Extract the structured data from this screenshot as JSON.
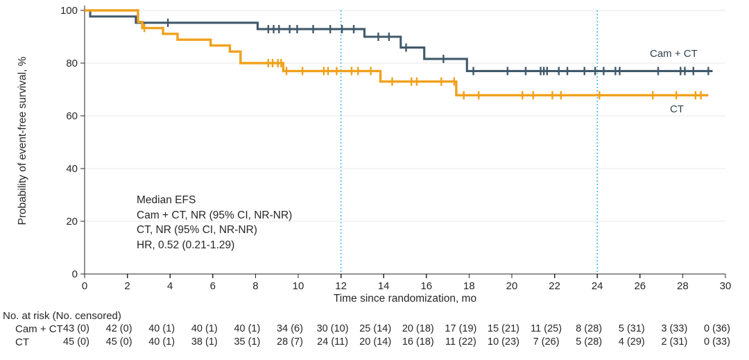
{
  "figure": {
    "ylabel": "Probability of event-free survival, %",
    "xlabel": "Time since randomization, mo"
  },
  "chart_data": {
    "type": "line",
    "subtype": "kaplan-meier-step",
    "xlabel": "Time since randomization, mo",
    "ylabel": "Probability of event-free survival, %",
    "xlim": [
      0,
      30
    ],
    "ylim": [
      0,
      100
    ],
    "x_ticks": [
      0,
      2,
      4,
      6,
      8,
      10,
      12,
      14,
      16,
      18,
      20,
      22,
      24,
      26,
      28,
      30
    ],
    "y_ticks": [
      0,
      20,
      40,
      60,
      80,
      100
    ],
    "grid": "horizontal",
    "reference_lines_x": [
      12,
      24
    ],
    "annotation": [
      "Median EFS",
      "Cam + CT, NR (95% CI, NR-NR)",
      "CT, NR (95% CI, NR-NR)",
      "HR, 0.52 (0.21-1.29)"
    ],
    "series": [
      {
        "name": "Cam + CT",
        "color": "#41596a",
        "end_x": 29.4,
        "steps": [
          [
            0,
            100
          ],
          [
            0.26,
            97.7
          ],
          [
            2.4,
            95.3
          ],
          [
            8.1,
            92.9
          ],
          [
            13.1,
            90.0
          ],
          [
            14.8,
            85.9
          ],
          [
            15.9,
            81.6
          ],
          [
            17.9,
            77.0
          ]
        ],
        "censors": [
          [
            3.9,
            95.3
          ],
          [
            8.6,
            92.9
          ],
          [
            8.85,
            92.9
          ],
          [
            9.1,
            92.9
          ],
          [
            9.6,
            92.9
          ],
          [
            9.95,
            92.9
          ],
          [
            10.7,
            92.9
          ],
          [
            11.5,
            92.9
          ],
          [
            12.05,
            92.9
          ],
          [
            12.6,
            92.9
          ],
          [
            13.75,
            90.0
          ],
          [
            14.25,
            90.0
          ],
          [
            15.05,
            85.9
          ],
          [
            16.8,
            81.6
          ],
          [
            18.2,
            77.0
          ],
          [
            19.8,
            77.0
          ],
          [
            20.65,
            77.0
          ],
          [
            21.35,
            77.0
          ],
          [
            21.5,
            77.0
          ],
          [
            21.65,
            77.0
          ],
          [
            22.2,
            77.0
          ],
          [
            22.6,
            77.0
          ],
          [
            23.4,
            77.0
          ],
          [
            23.9,
            77.0
          ],
          [
            24.3,
            77.0
          ],
          [
            24.85,
            77.0
          ],
          [
            25.05,
            77.0
          ],
          [
            26.85,
            77.0
          ],
          [
            27.9,
            77.0
          ],
          [
            28.1,
            77.0
          ],
          [
            28.5,
            77.0
          ],
          [
            29.2,
            77.0
          ]
        ]
      },
      {
        "name": "CT",
        "color": "#f0a11d",
        "end_x": 29.2,
        "steps": [
          [
            0,
            100
          ],
          [
            2.5,
            95.6
          ],
          [
            2.7,
            93.3
          ],
          [
            3.67,
            91.1
          ],
          [
            4.35,
            88.9
          ],
          [
            5.9,
            86.7
          ],
          [
            6.8,
            84.4
          ],
          [
            7.3,
            80.0
          ],
          [
            9.3,
            77.0
          ],
          [
            13.85,
            73.0
          ],
          [
            17.4,
            67.8
          ]
        ],
        "censors": [
          [
            2.8,
            93.3
          ],
          [
            8.6,
            80.0
          ],
          [
            8.8,
            80.0
          ],
          [
            9.05,
            80.0
          ],
          [
            9.2,
            80.0
          ],
          [
            9.45,
            77.0
          ],
          [
            10.2,
            77.0
          ],
          [
            11.2,
            77.0
          ],
          [
            11.4,
            77.0
          ],
          [
            11.8,
            77.0
          ],
          [
            12.5,
            77.0
          ],
          [
            12.8,
            77.0
          ],
          [
            13.4,
            77.0
          ],
          [
            14.4,
            73.0
          ],
          [
            15.3,
            73.0
          ],
          [
            15.55,
            73.0
          ],
          [
            16.7,
            73.0
          ],
          [
            17.3,
            73.0
          ],
          [
            17.75,
            67.8
          ],
          [
            18.45,
            67.8
          ],
          [
            20.5,
            67.8
          ],
          [
            21.0,
            67.8
          ],
          [
            21.9,
            67.8
          ],
          [
            22.3,
            67.8
          ],
          [
            24.1,
            67.8
          ],
          [
            26.6,
            67.8
          ],
          [
            27.7,
            67.8
          ],
          [
            28.6,
            67.8
          ],
          [
            28.85,
            67.8
          ]
        ]
      }
    ]
  },
  "risk_table": {
    "header": "No. at risk (No. censored)",
    "months": [
      0,
      2,
      4,
      6,
      8,
      10,
      12,
      14,
      16,
      18,
      20,
      22,
      24,
      26,
      28,
      30
    ],
    "rows": [
      {
        "label": "Cam + CT",
        "values": [
          "43 (0)",
          "42 (0)",
          "40 (1)",
          "40 (1)",
          "40 (1)",
          "34 (6)",
          "30 (10)",
          "25 (14)",
          "20 (18)",
          "17 (19)",
          "15 (21)",
          "11 (25)",
          "8 (28)",
          "5 (31)",
          "3 (33)",
          "0 (36)"
        ]
      },
      {
        "label": "CT",
        "values": [
          "45 (0)",
          "45 (0)",
          "40 (1)",
          "38 (1)",
          "35 (1)",
          "28 (7)",
          "24 (11)",
          "20 (14)",
          "16 (18)",
          "11 (22)",
          "10 (23)",
          "7 (26)",
          "5 (28)",
          "4 (29)",
          "2 (31)",
          "0 (33)"
        ]
      }
    ]
  },
  "colors": {
    "cam_ct_line": "#41596a",
    "ct_line": "#f0a11d",
    "reference_line": "#45b5e8",
    "gridline": "#e8e8e8",
    "axis": "#262626",
    "text": "#262626",
    "background": "#ffffff"
  }
}
